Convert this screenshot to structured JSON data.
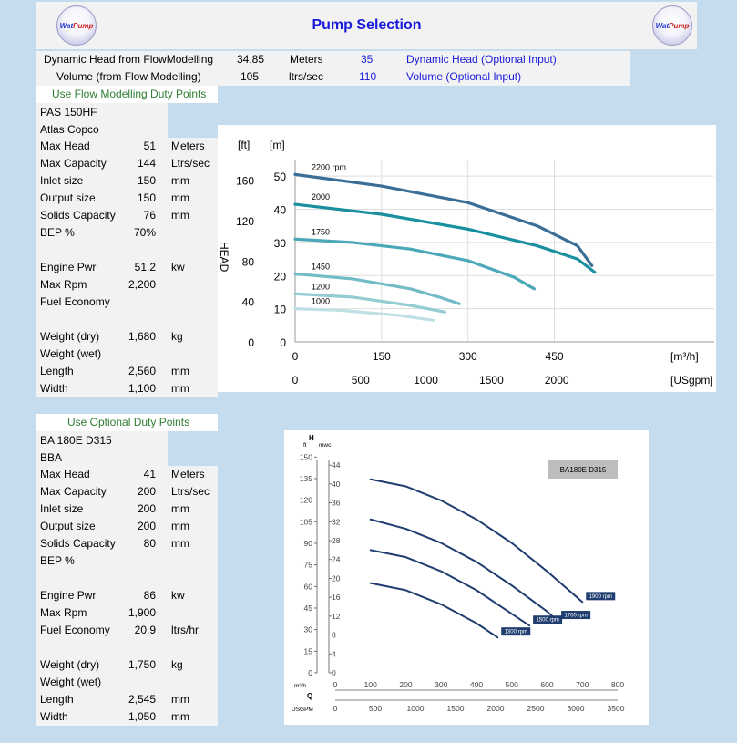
{
  "header": {
    "title": "Pump Selection",
    "logo_left": {
      "w": "Wat",
      "p": "Pump"
    },
    "logo_right": {
      "w": "Wat",
      "p": "Pump"
    }
  },
  "duty": [
    {
      "label": "Dynamic Head from FlowModelling",
      "value": "34.85",
      "unit": "Meters",
      "input": "35",
      "input_label": "Dynamic Head (Optional Input)"
    },
    {
      "label": "Volume (from Flow Modelling)",
      "value": "105",
      "unit": "ltrs/sec",
      "input": "110",
      "input_label": "Volume (Optional Input)"
    }
  ],
  "pump1": {
    "section_label": "Use Flow Modelling Duty Points",
    "model": "PAS 150HF",
    "brand": "Atlas Copco",
    "specs": [
      {
        "label": "Max Head",
        "value": "51",
        "unit": "Meters"
      },
      {
        "label": "Max Capacity",
        "value": "144",
        "unit": "Ltrs/sec"
      },
      {
        "label": "Inlet size",
        "value": "150",
        "unit": "mm"
      },
      {
        "label": "Output size",
        "value": "150",
        "unit": "mm"
      },
      {
        "label": "Solids Capacity",
        "value": "76",
        "unit": "mm"
      },
      {
        "label": "BEP %",
        "value": "70%",
        "unit": ""
      },
      {
        "label": "",
        "value": "",
        "unit": ""
      },
      {
        "label": "Engine Pwr",
        "value": "51.2",
        "unit": "kw"
      },
      {
        "label": "Max Rpm",
        "value": "2,200",
        "unit": ""
      },
      {
        "label": "Fuel Economy",
        "value": "",
        "unit": ""
      },
      {
        "label": "",
        "value": "",
        "unit": ""
      },
      {
        "label": "Weight (dry)",
        "value": "1,680",
        "unit": "kg"
      },
      {
        "label": "Weight (wet)",
        "value": "",
        "unit": ""
      },
      {
        "label": "Length",
        "value": "2,560",
        "unit": "mm"
      },
      {
        "label": "Width",
        "value": "1,100",
        "unit": "mm"
      }
    ]
  },
  "pump2": {
    "section_label": "Use Optional Duty Points",
    "model": "BA 180E D315",
    "brand": "BBA",
    "specs": [
      {
        "label": "Max Head",
        "value": "41",
        "unit": "Meters"
      },
      {
        "label": "Max Capacity",
        "value": "200",
        "unit": "Ltrs/sec"
      },
      {
        "label": "Inlet size",
        "value": "200",
        "unit": "mm"
      },
      {
        "label": "Output size",
        "value": "200",
        "unit": "mm"
      },
      {
        "label": "Solids Capacity",
        "value": "80",
        "unit": "mm"
      },
      {
        "label": "BEP %",
        "value": "",
        "unit": ""
      },
      {
        "label": "",
        "value": "",
        "unit": ""
      },
      {
        "label": "Engine Pwr",
        "value": "86",
        "unit": "kw"
      },
      {
        "label": "Max Rpm",
        "value": "1,900",
        "unit": ""
      },
      {
        "label": "Fuel Economy",
        "value": "20.9",
        "unit": "ltrs/hr"
      },
      {
        "label": "",
        "value": "",
        "unit": ""
      },
      {
        "label": "Weight (dry)",
        "value": "1,750",
        "unit": "kg"
      },
      {
        "label": "Weight (wet)",
        "value": "",
        "unit": ""
      },
      {
        "label": "Length",
        "value": "2,545",
        "unit": "mm"
      },
      {
        "label": "Width",
        "value": "1,050",
        "unit": "mm"
      }
    ]
  },
  "chart_data": [
    {
      "type": "line",
      "title": "",
      "ylabel": "HEAD",
      "y_units": [
        "[ft]",
        "[m]"
      ],
      "y_ticks_ft": [
        0,
        40,
        80,
        120,
        160
      ],
      "y_ticks_m": [
        0,
        10,
        20,
        30,
        40,
        50
      ],
      "x_units": [
        "[m³/h]",
        "[USgpm]"
      ],
      "x_ticks_m3h": [
        0,
        150,
        300,
        450
      ],
      "x_ticks_usgpm": [
        0,
        500,
        1000,
        1500,
        2000
      ],
      "xlim": [
        0,
        680
      ],
      "ylim_m": [
        0,
        55
      ],
      "series": [
        {
          "name": "2200 rpm",
          "color": "#3a6e96",
          "x": [
            0,
            150,
            300,
            420,
            490,
            515
          ],
          "y": [
            50.5,
            47,
            42,
            35,
            29,
            23
          ]
        },
        {
          "name": "2000",
          "color": "#1a8fa0",
          "x": [
            0,
            150,
            300,
            420,
            490,
            520
          ],
          "y": [
            41.5,
            38.5,
            34,
            29,
            25,
            21
          ]
        },
        {
          "name": "1750",
          "color": "#4aa8b8",
          "x": [
            0,
            100,
            200,
            300,
            380,
            415
          ],
          "y": [
            31,
            30,
            28,
            24.5,
            19.5,
            16
          ]
        },
        {
          "name": "1450",
          "color": "#72bcc7",
          "x": [
            0,
            100,
            200,
            250,
            285
          ],
          "y": [
            20.5,
            19,
            16,
            13.5,
            11.5
          ]
        },
        {
          "name": "1200",
          "color": "#93ccd3",
          "x": [
            0,
            100,
            200,
            260
          ],
          "y": [
            14.5,
            13.5,
            11,
            9
          ]
        },
        {
          "name": "1000",
          "color": "#bfe0e5",
          "x": [
            0,
            80,
            180,
            240
          ],
          "y": [
            10,
            9.5,
            8,
            6.5
          ]
        }
      ]
    },
    {
      "type": "line",
      "title": "BA180E D315",
      "y_axis_symbol": "H",
      "y_units": [
        "ft",
        "mwc"
      ],
      "y_ticks_ft": [
        0,
        15,
        30,
        45,
        60,
        75,
        90,
        105,
        120,
        135,
        150
      ],
      "y_ticks_mwc": [
        0,
        4,
        8,
        12,
        16,
        20,
        24,
        28,
        32,
        36,
        40,
        44
      ],
      "x_axis_symbol": "Q",
      "x_units": [
        "m³/h",
        "USGPM"
      ],
      "x_ticks_m3h": [
        0,
        100,
        200,
        300,
        400,
        500,
        600,
        700,
        800
      ],
      "x_ticks_usgpm": [
        0,
        500,
        1000,
        1500,
        2000,
        2500,
        3000,
        3500
      ],
      "xlim": [
        0,
        800
      ],
      "ylim_mwc": [
        0,
        45
      ],
      "series": [
        {
          "name": "1900 rpm",
          "color": "#1f3d6e",
          "x": [
            100,
            200,
            300,
            400,
            500,
            600,
            700
          ],
          "y": [
            41,
            39.5,
            36.5,
            32.5,
            27.5,
            21.5,
            15
          ]
        },
        {
          "name": "1700 rpm",
          "color": "#1f3d6e",
          "x": [
            100,
            200,
            300,
            400,
            500,
            600,
            630
          ],
          "y": [
            32.5,
            30.5,
            27.5,
            23.5,
            18.5,
            13,
            11
          ]
        },
        {
          "name": "1500 rpm",
          "color": "#1f3d6e",
          "x": [
            100,
            200,
            300,
            400,
            500,
            550
          ],
          "y": [
            26,
            24.5,
            21.5,
            17.5,
            12.5,
            10
          ]
        },
        {
          "name": "1300 rpm",
          "color": "#1f3d6e",
          "x": [
            100,
            200,
            300,
            400,
            460
          ],
          "y": [
            19,
            17.5,
            14.5,
            10.5,
            7.5
          ]
        }
      ]
    }
  ]
}
